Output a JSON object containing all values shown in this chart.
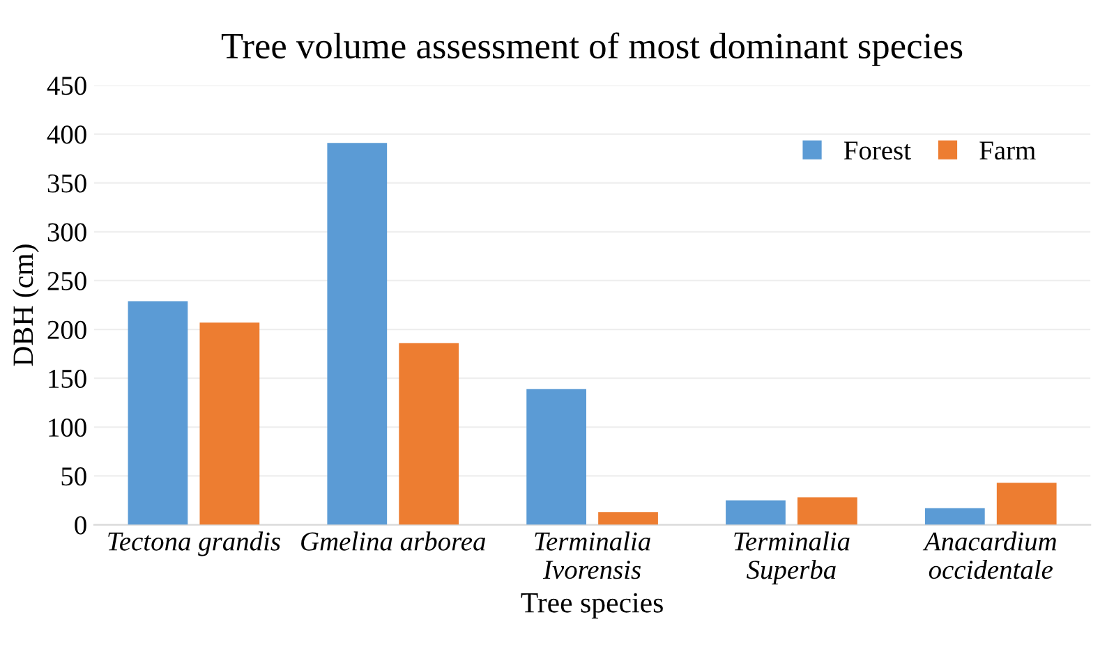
{
  "chart_data": {
    "type": "bar",
    "title": "Tree volume assessment of most dominant species",
    "xlabel": "Tree species",
    "ylabel": "DBH (cm)",
    "categories": [
      "Tectona grandis",
      "Gmelina arborea",
      "Terminalia\nIvorensis",
      "Terminalia\nSuperba",
      "Anacardium\noccidentale"
    ],
    "series": [
      {
        "name": "Forest",
        "color": "#5b9bd5",
        "values": [
          229,
          391,
          139,
          25,
          17
        ]
      },
      {
        "name": "Farm",
        "color": "#ed7d31",
        "values": [
          207,
          186,
          13,
          28,
          43
        ]
      }
    ],
    "ylim": [
      0,
      450
    ],
    "yticks": [
      0,
      50,
      100,
      150,
      200,
      250,
      300,
      350,
      400,
      450
    ],
    "grid": "y",
    "legend": "top right"
  }
}
